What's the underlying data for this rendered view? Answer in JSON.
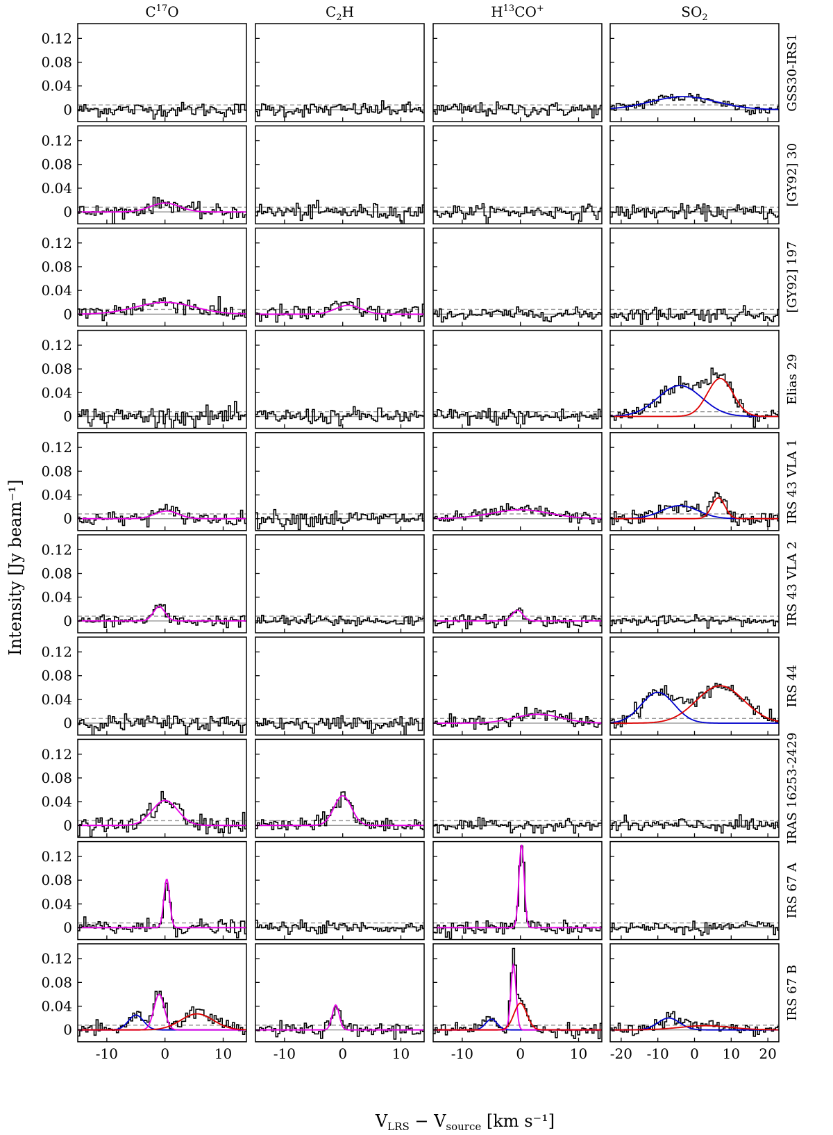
{
  "figure": {
    "ylabel": "Intensity [Jy beam⁻¹]",
    "xlabel_parts": {
      "v1": "V",
      "sub1": "LRS",
      "minus": " − V",
      "sub2": "source",
      "unit": " [km s⁻¹]"
    }
  },
  "chart_data": {
    "type": "line",
    "grid": false,
    "ylim": [
      -0.02,
      0.145
    ],
    "yticks": [
      0,
      0.04,
      0.08,
      0.12
    ],
    "ytick_labels": [
      "0",
      "0.04",
      "0.08",
      "0.12"
    ],
    "rms_dashed_level": 0.008,
    "columns": [
      {
        "name_parts": [
          "C",
          "17",
          "O",
          ""
        ],
        "xlim": [
          -15,
          14
        ],
        "xticks": [
          -10,
          0,
          10
        ],
        "xtick_labels": [
          "-10",
          "0",
          "10"
        ],
        "channel_width": 0.35
      },
      {
        "name_parts": [
          "C",
          "2",
          "H",
          ""
        ],
        "xlim": [
          -15,
          14
        ],
        "xticks": [
          -10,
          0,
          10
        ],
        "xtick_labels": [
          "-10",
          "0",
          "10"
        ],
        "channel_width": 0.35
      },
      {
        "name_parts": [
          "H",
          "13",
          "CO",
          "+"
        ],
        "xlim": [
          -15,
          14
        ],
        "xticks": [
          -10,
          0,
          10
        ],
        "xtick_labels": [
          "-10",
          "0",
          "10"
        ],
        "channel_width": 0.35
      },
      {
        "name_parts": [
          "SO",
          "2",
          "",
          ""
        ],
        "xlim": [
          -23,
          23
        ],
        "xticks": [
          -20,
          -10,
          0,
          10,
          20
        ],
        "xtick_labels": [
          "-20",
          "-10",
          "0",
          "10",
          "20"
        ],
        "channel_width": 0.55
      }
    ],
    "rows": [
      {
        "source": "GSS30-IRS1",
        "panels": [
          {
            "noise": 0.006,
            "fits": []
          },
          {
            "noise": 0.006,
            "fits": []
          },
          {
            "noise": 0.006,
            "fits": []
          },
          {
            "noise": 0.005,
            "fits": [
              {
                "color": "#0000cc",
                "amp": 0.022,
                "center": -3,
                "sigma": 9
              }
            ]
          }
        ]
      },
      {
        "source": "[GY92] 30",
        "panels": [
          {
            "noise": 0.006,
            "fits": [
              {
                "color": "#e600e6",
                "amp": 0.015,
                "center": 0,
                "sigma": 2.5
              }
            ]
          },
          {
            "noise": 0.007,
            "fits": []
          },
          {
            "noise": 0.006,
            "fits": []
          },
          {
            "noise": 0.006,
            "fits": []
          }
        ]
      },
      {
        "source": "[GY92] 197",
        "panels": [
          {
            "noise": 0.008,
            "fits": [
              {
                "color": "#e600e6",
                "amp": 0.02,
                "center": 0,
                "sigma": 5
              }
            ]
          },
          {
            "noise": 0.008,
            "fits": [
              {
                "color": "#e600e6",
                "amp": 0.015,
                "center": 1,
                "sigma": 2.2
              }
            ]
          },
          {
            "noise": 0.005,
            "fits": []
          },
          {
            "noise": 0.006,
            "fits": []
          }
        ]
      },
      {
        "source": "Elias 29",
        "panels": [
          {
            "noise": 0.008,
            "fits": []
          },
          {
            "noise": 0.007,
            "fits": []
          },
          {
            "noise": 0.007,
            "fits": []
          },
          {
            "noise": 0.007,
            "fits": [
              {
                "color": "#0000cc",
                "amp": 0.052,
                "center": -4,
                "sigma": 6
              },
              {
                "color": "#dd0000",
                "amp": 0.064,
                "center": 7,
                "sigma": 3.5
              }
            ]
          }
        ]
      },
      {
        "source": "IRS 43 VLA 1",
        "panels": [
          {
            "noise": 0.006,
            "fits": [
              {
                "color": "#e600e6",
                "amp": 0.013,
                "center": 0.3,
                "sigma": 2
              }
            ]
          },
          {
            "noise": 0.007,
            "fits": []
          },
          {
            "noise": 0.005,
            "fits": [
              {
                "color": "#e600e6",
                "amp": 0.015,
                "center": 0,
                "sigma": 5
              }
            ]
          },
          {
            "noise": 0.006,
            "fits": [
              {
                "color": "#0000cc",
                "amp": 0.022,
                "center": -4,
                "sigma": 5
              },
              {
                "color": "#dd0000",
                "amp": 0.035,
                "center": 6.5,
                "sigma": 1.8
              }
            ]
          }
        ]
      },
      {
        "source": "IRS 43 VLA 2",
        "panels": [
          {
            "noise": 0.005,
            "fits": [
              {
                "color": "#e600e6",
                "amp": 0.024,
                "center": -1,
                "sigma": 1
              }
            ]
          },
          {
            "noise": 0.005,
            "fits": []
          },
          {
            "noise": 0.005,
            "fits": [
              {
                "color": "#e600e6",
                "amp": 0.018,
                "center": -0.5,
                "sigma": 0.9
              }
            ]
          },
          {
            "noise": 0.004,
            "fits": []
          }
        ]
      },
      {
        "source": "IRS 44",
        "panels": [
          {
            "noise": 0.007,
            "fits": []
          },
          {
            "noise": 0.006,
            "fits": []
          },
          {
            "noise": 0.006,
            "fits": [
              {
                "color": "#e600e6",
                "amp": 0.015,
                "center": 3,
                "sigma": 4
              }
            ]
          },
          {
            "noise": 0.006,
            "fits": [
              {
                "color": "#0000cc",
                "amp": 0.052,
                "center": -10,
                "sigma": 4.5
              },
              {
                "color": "#dd0000",
                "amp": 0.063,
                "center": 7,
                "sigma": 6.5
              }
            ]
          }
        ]
      },
      {
        "source": "IRAS 16253-2429",
        "panels": [
          {
            "noise": 0.008,
            "fits": [
              {
                "color": "#e600e6",
                "amp": 0.042,
                "center": 0,
                "sigma": 2.2
              }
            ]
          },
          {
            "noise": 0.007,
            "fits": [
              {
                "color": "#e600e6",
                "amp": 0.05,
                "center": 0,
                "sigma": 1.5
              }
            ]
          },
          {
            "noise": 0.005,
            "fits": []
          },
          {
            "noise": 0.006,
            "fits": []
          }
        ]
      },
      {
        "source": "IRS 67 A",
        "panels": [
          {
            "noise": 0.007,
            "fits": [
              {
                "color": "#e600e6",
                "amp": 0.082,
                "center": 0.3,
                "sigma": 0.5
              }
            ]
          },
          {
            "noise": 0.005,
            "fits": []
          },
          {
            "noise": 0.006,
            "fits": [
              {
                "color": "#e600e6",
                "amp": 0.14,
                "center": 0.2,
                "sigma": 0.45
              }
            ]
          },
          {
            "noise": 0.005,
            "fits": []
          }
        ]
      },
      {
        "source": "IRS 67 B",
        "panels": [
          {
            "noise": 0.006,
            "fits": [
              {
                "color": "#0000cc",
                "amp": 0.025,
                "center": -5,
                "sigma": 1.3
              },
              {
                "color": "#e600e6",
                "amp": 0.06,
                "center": -1,
                "sigma": 0.9
              },
              {
                "color": "#dd0000",
                "amp": 0.027,
                "center": 5.5,
                "sigma": 2.8
              }
            ]
          },
          {
            "noise": 0.006,
            "fits": [
              {
                "color": "#e600e6",
                "amp": 0.042,
                "center": -1.2,
                "sigma": 0.6
              }
            ]
          },
          {
            "noise": 0.006,
            "fits": [
              {
                "color": "#0000cc",
                "amp": 0.018,
                "center": -5,
                "sigma": 1
              },
              {
                "color": "#e600e6",
                "amp": 0.11,
                "center": -1.2,
                "sigma": 0.45
              },
              {
                "color": "#dd0000",
                "amp": 0.045,
                "center": 0,
                "sigma": 1.1
              }
            ]
          },
          {
            "noise": 0.005,
            "fits": [
              {
                "color": "#0000cc",
                "amp": 0.02,
                "center": -7,
                "sigma": 3
              },
              {
                "color": "#dd0000",
                "amp": 0.007,
                "center": 3,
                "sigma": 7
              }
            ]
          }
        ]
      }
    ]
  }
}
